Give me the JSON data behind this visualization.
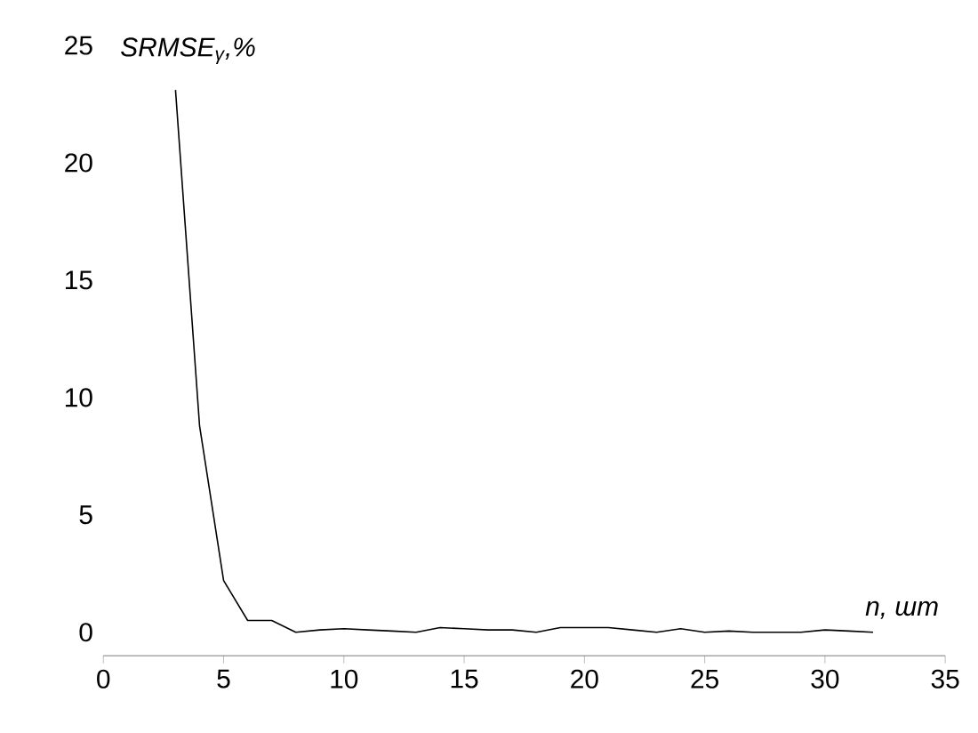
{
  "chart_data": {
    "type": "line",
    "xlabel": "n, шт",
    "ylabel": "SRMSE$_{γ}$,%",
    "x": [
      3,
      4,
      5,
      6,
      7,
      8,
      9,
      10,
      11,
      12,
      13,
      14,
      15,
      16,
      17,
      18,
      19,
      20,
      21,
      22,
      23,
      24,
      25,
      26,
      27,
      28,
      29,
      30,
      31,
      32
    ],
    "values": [
      23.1,
      8.8,
      2.2,
      0.5,
      0.5,
      0.0,
      0.1,
      0.15,
      0.1,
      0.05,
      0.0,
      0.2,
      0.15,
      0.1,
      0.1,
      0.0,
      0.2,
      0.2,
      0.2,
      0.1,
      0.0,
      0.15,
      0.0,
      0.05,
      0.0,
      0.0,
      0.0,
      0.1,
      0.05,
      0.0
    ],
    "color": "#000000",
    "xlim": [
      0,
      35
    ],
    "ylim": [
      -1,
      25
    ],
    "xticks": [
      0,
      5,
      10,
      15,
      20,
      25,
      30,
      35
    ],
    "yticks": [
      0,
      5,
      10,
      15,
      20,
      25
    ],
    "grid": false,
    "marker": "none",
    "line_style": "solid"
  }
}
